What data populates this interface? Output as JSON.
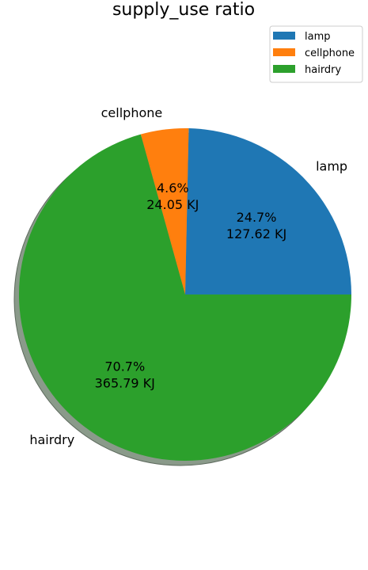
{
  "chart_data": {
    "type": "pie",
    "title": "supply_use ratio",
    "unit": "KJ",
    "legend_position": "top-right",
    "shadow": true,
    "start_angle_deg": 0,
    "direction": "counterclockwise",
    "slices": [
      {
        "label": "lamp",
        "value": 127.62,
        "percent": "24.7%",
        "value_label": "127.62 KJ",
        "color": "#1f77b4"
      },
      {
        "label": "cellphone",
        "value": 24.05,
        "percent": "4.6%",
        "value_label": "24.05 KJ",
        "color": "#ff7f0e"
      },
      {
        "label": "hairdry",
        "value": 365.79,
        "percent": "70.7%",
        "value_label": "365.79 KJ",
        "color": "#2ca02c"
      }
    ]
  }
}
